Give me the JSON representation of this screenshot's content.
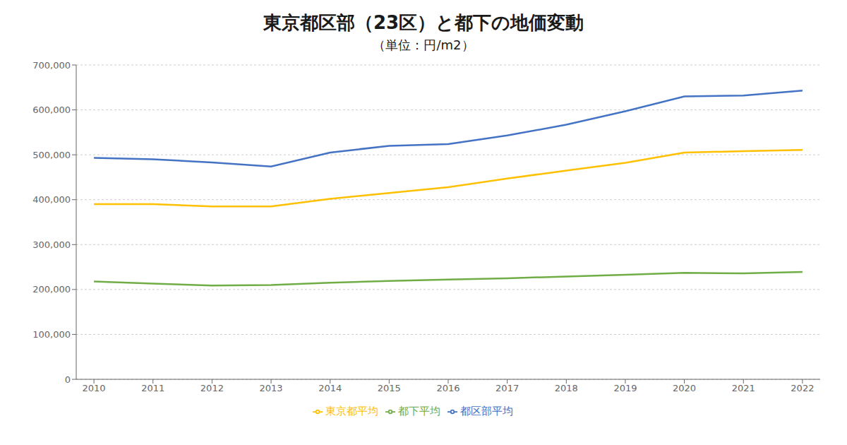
{
  "chart_data": {
    "type": "line",
    "title": "東京都区部（23区）と都下の地価変動",
    "subtitle": "（単位：円/m2）",
    "x": [
      2010,
      2011,
      2012,
      2013,
      2014,
      2015,
      2016,
      2017,
      2018,
      2019,
      2020,
      2021,
      2022
    ],
    "series": [
      {
        "name": "都区部平均",
        "color": "#4472C4",
        "values": [
          493000,
          490000,
          483000,
          474000,
          505000,
          520000,
          524000,
          543000,
          567000,
          597000,
          630000,
          632000,
          643000
        ]
      },
      {
        "name": "都下平均",
        "color": "#70AD47",
        "values": [
          218000,
          213000,
          209000,
          210000,
          215000,
          219000,
          222000,
          225000,
          229000,
          233000,
          237000,
          236000,
          239000
        ]
      },
      {
        "name": "東京都平均",
        "color": "#FFC000",
        "values": [
          390000,
          390000,
          385000,
          385000,
          402000,
          415000,
          428000,
          447000,
          465000,
          482000,
          505000,
          508000,
          511000
        ]
      }
    ],
    "xlim": [
      2009.7,
      2022.3
    ],
    "xticks": [
      2010,
      2011,
      2012,
      2013,
      2014,
      2015,
      2016,
      2017,
      2018,
      2019,
      2020,
      2021,
      2022
    ],
    "ylim": [
      0,
      700000
    ],
    "yticks": [
      0,
      {
        "value": 100000,
        "label": "100,000"
      },
      {
        "value": 200000,
        "label": "200,000"
      },
      {
        "value": 300000,
        "label": "300,000"
      },
      {
        "value": 400000,
        "label": "400,000"
      },
      {
        "value": 500000,
        "label": "500,000"
      },
      {
        "value": 600000,
        "label": "600,000"
      },
      {
        "value": 700000,
        "label": "700,000"
      }
    ],
    "grid": true,
    "legend": "bottom"
  }
}
